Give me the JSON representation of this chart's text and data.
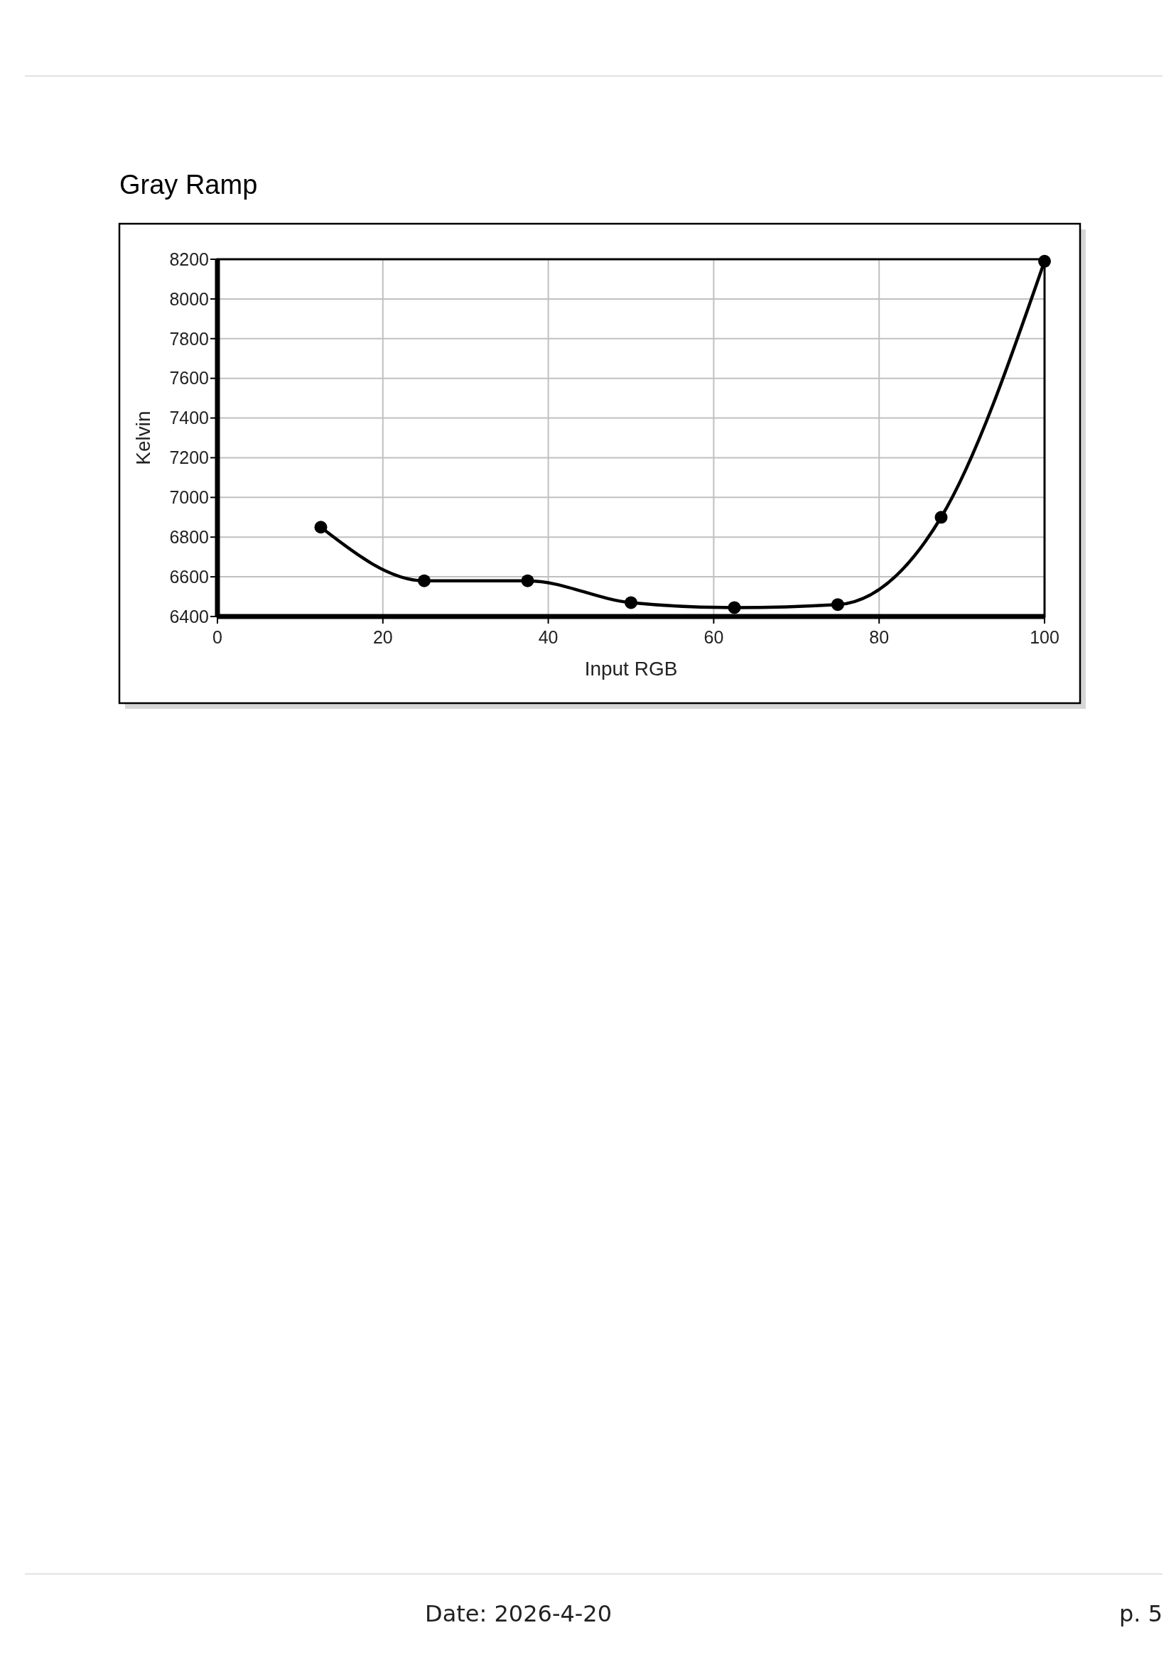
{
  "chart_data": {
    "type": "line",
    "title": "Gray Ramp",
    "xlabel": "Input RGB",
    "ylabel": "Kelvin",
    "x": [
      12.5,
      25,
      37.5,
      50,
      62.5,
      75,
      87.5,
      100
    ],
    "series": [
      {
        "color": "#000000",
        "values": [
          6850,
          6580,
          6580,
          6470,
          6445,
          6460,
          6900,
          8190
        ]
      }
    ],
    "xlim": [
      0,
      100
    ],
    "xticks": [
      0,
      20,
      40,
      60,
      80,
      100
    ],
    "ylim": [
      6400,
      8200
    ],
    "yticks": [
      6400,
      6600,
      6800,
      7000,
      7200,
      7400,
      7600,
      7800,
      8000,
      8200
    ],
    "grid": true,
    "marker": "circle",
    "line_style": "solid",
    "annotations": [
      "Date: 2026-4-20",
      "p. 5"
    ]
  }
}
